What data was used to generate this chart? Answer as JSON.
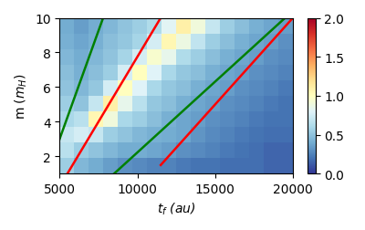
{
  "xlabel": "$t_f$ (au)",
  "ylabel": "m ($m_H$)",
  "xlim": [
    5000,
    20000
  ],
  "ylim": [
    1,
    10
  ],
  "yticks": [
    2,
    4,
    6,
    8,
    10
  ],
  "xticks": [
    5000,
    10000,
    15000,
    20000
  ],
  "vmin": 0.0,
  "vmax": 2.0,
  "heatmap_data": [
    [
      0.55,
      0.45,
      0.4,
      0.35,
      0.3,
      0.28,
      0.25,
      0.25,
      0.22,
      0.2,
      0.2,
      0.18,
      0.18,
      0.18,
      0.15,
      0.15
    ],
    [
      0.65,
      0.55,
      0.5,
      0.45,
      0.4,
      0.4,
      0.38,
      0.35,
      0.3,
      0.28,
      0.25,
      0.22,
      0.2,
      0.18,
      0.15,
      0.15
    ],
    [
      0.7,
      0.75,
      0.7,
      0.55,
      0.5,
      0.45,
      0.42,
      0.4,
      0.38,
      0.32,
      0.28,
      0.25,
      0.22,
      0.2,
      0.18,
      0.18
    ],
    [
      0.6,
      0.65,
      1.05,
      0.9,
      0.6,
      0.55,
      0.48,
      0.42,
      0.38,
      0.35,
      0.3,
      0.28,
      0.25,
      0.22,
      0.2,
      0.2
    ],
    [
      0.55,
      0.5,
      0.7,
      1.1,
      0.85,
      0.65,
      0.52,
      0.48,
      0.42,
      0.38,
      0.35,
      0.3,
      0.28,
      0.25,
      0.22,
      0.2
    ],
    [
      0.5,
      0.45,
      0.52,
      0.75,
      1.0,
      0.8,
      0.6,
      0.52,
      0.48,
      0.42,
      0.38,
      0.35,
      0.3,
      0.28,
      0.25,
      0.22
    ],
    [
      0.48,
      0.42,
      0.48,
      0.55,
      0.75,
      1.0,
      0.8,
      0.6,
      0.52,
      0.48,
      0.42,
      0.38,
      0.35,
      0.3,
      0.28,
      0.25
    ],
    [
      0.45,
      0.4,
      0.45,
      0.5,
      0.58,
      0.75,
      0.95,
      0.85,
      0.62,
      0.55,
      0.48,
      0.42,
      0.38,
      0.35,
      0.3,
      0.28
    ],
    [
      0.42,
      0.38,
      0.42,
      0.48,
      0.52,
      0.58,
      0.75,
      1.05,
      0.88,
      0.68,
      0.55,
      0.48,
      0.42,
      0.38,
      0.35,
      0.3
    ],
    [
      0.4,
      0.35,
      0.4,
      0.45,
      0.5,
      0.55,
      0.62,
      0.82,
      1.1,
      0.9,
      0.7,
      0.55,
      0.48,
      0.42,
      0.38,
      0.35
    ]
  ],
  "line_red": [
    {
      "x": [
        5500,
        11500
      ],
      "y": [
        1.0,
        10.0
      ]
    },
    {
      "x": [
        11500,
        20000
      ],
      "y": [
        1.5,
        10.0
      ]
    }
  ],
  "line_green": [
    {
      "x": [
        5000,
        7800
      ],
      "y": [
        3.0,
        10.0
      ]
    },
    {
      "x": [
        8500,
        19500
      ],
      "y": [
        1.0,
        10.0
      ]
    }
  ],
  "line_width": 1.8,
  "cmap": "RdYlBu_r"
}
